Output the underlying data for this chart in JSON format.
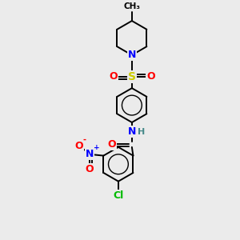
{
  "background_color": "#ebebeb",
  "bond_color": "#000000",
  "atom_colors": {
    "N": "#0000ff",
    "O": "#ff0000",
    "S": "#cccc00",
    "Cl": "#00bb00",
    "H": "#448888",
    "C": "#000000"
  }
}
